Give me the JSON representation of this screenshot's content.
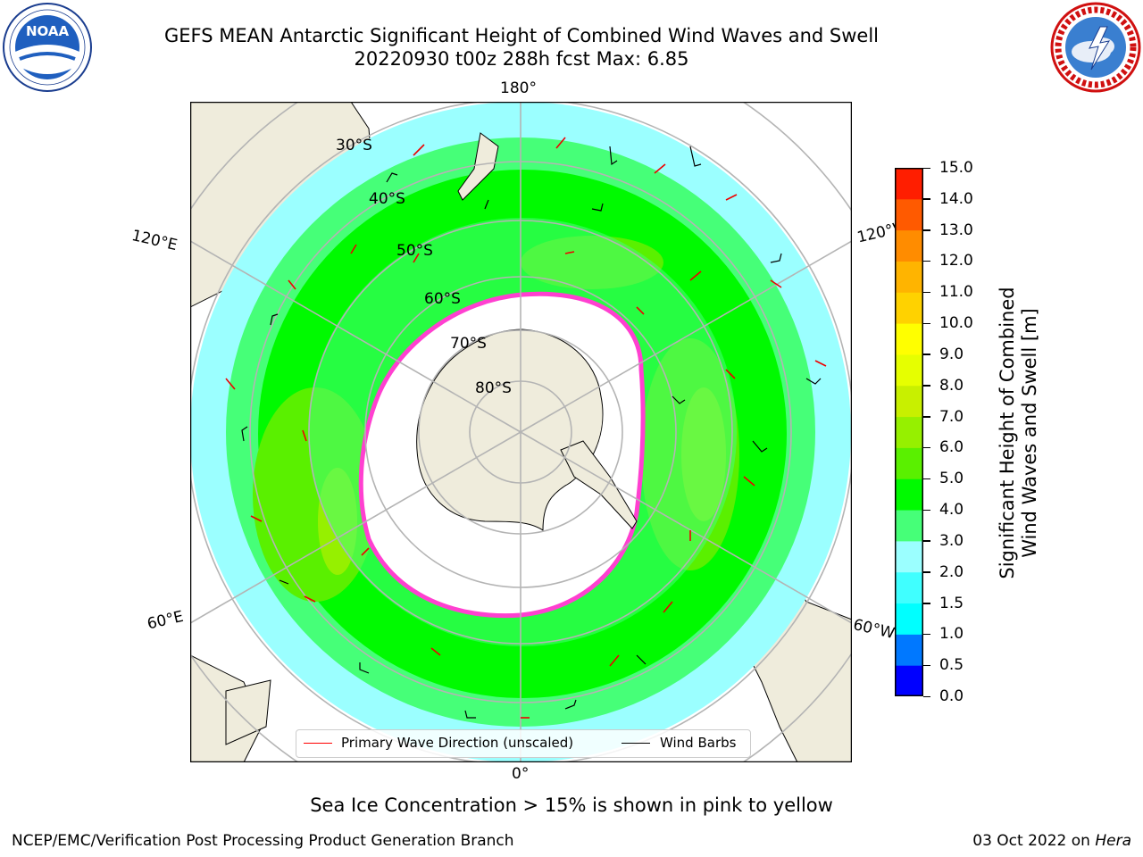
{
  "header": {
    "title_line1": "GEFS MEAN Antarctic Significant Height of Combined Wind Waves and Swell",
    "title_line2": "20220930 t00z 288h fcst   Max: 6.85"
  },
  "logos": {
    "left": "noaa-logo",
    "right": "nws-logo"
  },
  "map": {
    "projection": "south-polar-stereographic",
    "longitude_labels": {
      "top": "180°",
      "bottom": "0°",
      "upper_left": "120°E",
      "lower_left": "60°E",
      "upper_right": "120°W",
      "lower_right": "60°W"
    },
    "latitude_labels": [
      "30°S",
      "40°S",
      "50°S",
      "60°S",
      "70°S",
      "80°S"
    ],
    "colors": {
      "land": "#efecdc",
      "coast": "#000000",
      "grid": "#b4b4b4",
      "ice_edge": "#ff40d0",
      "ice": "#ffffff",
      "arrow": "#ee0000"
    }
  },
  "colorbar": {
    "label_line1": "Significant Height of Combined",
    "label_line2": "Wind Waves and Swell [m]",
    "levels": [
      "0.0",
      "0.5",
      "1.0",
      "1.5",
      "2.0",
      "3.0",
      "4.0",
      "5.0",
      "6.0",
      "7.0",
      "8.0",
      "9.0",
      "10.0",
      "11.0",
      "12.0",
      "13.0",
      "14.0",
      "15.0"
    ],
    "colors": [
      "#0000ff",
      "#0078ff",
      "#00ffff",
      "#40ffff",
      "#9bffff",
      "#46ff78",
      "#00fa00",
      "#5af000",
      "#96f000",
      "#c8f000",
      "#e6ff00",
      "#ffff00",
      "#ffd200",
      "#ffb400",
      "#ff8c00",
      "#ff5a00",
      "#ff1e00"
    ]
  },
  "legend": {
    "wave_label": "Primary Wave Direction (unscaled)",
    "wind_label": "Wind Barbs",
    "wave_color": "#ff0000",
    "wind_color": "#000000"
  },
  "caption": "Sea Ice Concentration > 15% is shown in pink to yellow",
  "footer": {
    "left": "NCEP/EMC/Verification Post Processing Product Generation Branch",
    "right_date": "03 Oct 2022 on ",
    "right_host": "Hera"
  }
}
